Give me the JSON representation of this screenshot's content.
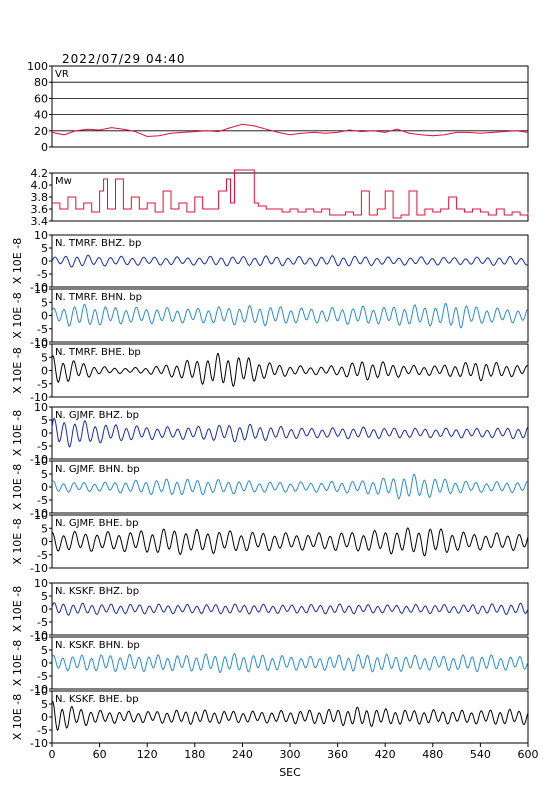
{
  "header": {
    "timestamp": "2022/07/29 04:40"
  },
  "colors": {
    "vr": "#e0103c",
    "mw": "#e0103c",
    "bhz": "#1a2aa8",
    "bhn": "#2a8ad8",
    "bhe": "#000000",
    "grid": "#000000"
  },
  "x_axis": {
    "label": "SEC",
    "ticks": [
      "0",
      "60",
      "120",
      "180",
      "240",
      "300",
      "360",
      "420",
      "480",
      "540",
      "600"
    ],
    "min": 0,
    "max": 600
  },
  "chart_data": [
    {
      "type": "line",
      "label": "VR",
      "ylim": [
        0,
        100
      ],
      "yticks": [
        "100",
        "80",
        "60",
        "40",
        "20",
        "0"
      ],
      "grid": true,
      "x": [
        0,
        15,
        30,
        45,
        60,
        75,
        90,
        105,
        120,
        135,
        150,
        165,
        180,
        195,
        210,
        225,
        240,
        255,
        270,
        285,
        300,
        315,
        330,
        345,
        360,
        375,
        390,
        405,
        420,
        435,
        450,
        465,
        480,
        495,
        510,
        525,
        540,
        555,
        570,
        585,
        600
      ],
      "values": [
        18,
        15,
        20,
        22,
        21,
        24,
        22,
        19,
        13,
        14,
        17,
        18,
        19,
        20,
        19,
        24,
        28,
        26,
        22,
        18,
        15,
        17,
        18,
        17,
        18,
        21,
        19,
        20,
        18,
        22,
        17,
        15,
        14,
        15,
        18,
        18,
        17,
        18,
        19,
        20,
        18
      ]
    },
    {
      "type": "line",
      "label": "Mw",
      "ylim": [
        3.4,
        4.2
      ],
      "yticks": [
        "4.2",
        "4.0",
        "3.8",
        "3.6",
        "3.4"
      ],
      "grid": false,
      "x": [
        0,
        10,
        20,
        30,
        40,
        50,
        60,
        65,
        70,
        80,
        90,
        100,
        110,
        120,
        130,
        140,
        150,
        160,
        170,
        180,
        190,
        200,
        210,
        220,
        225,
        230,
        240,
        250,
        255,
        260,
        270,
        280,
        290,
        300,
        310,
        320,
        330,
        340,
        350,
        360,
        370,
        380,
        390,
        400,
        410,
        420,
        430,
        440,
        450,
        460,
        470,
        480,
        490,
        500,
        510,
        520,
        530,
        540,
        550,
        560,
        570,
        580,
        590,
        600
      ],
      "values": [
        3.7,
        3.6,
        3.8,
        3.6,
        3.7,
        3.55,
        3.9,
        4.1,
        3.6,
        4.1,
        3.6,
        3.8,
        3.6,
        3.7,
        3.55,
        3.9,
        3.6,
        3.7,
        3.55,
        3.8,
        3.6,
        3.6,
        3.9,
        4.1,
        3.7,
        4.25,
        4.25,
        4.25,
        3.7,
        3.65,
        3.6,
        3.6,
        3.55,
        3.6,
        3.55,
        3.6,
        3.55,
        3.6,
        3.5,
        3.5,
        3.55,
        3.5,
        3.9,
        3.5,
        3.6,
        3.9,
        3.45,
        3.5,
        3.9,
        3.5,
        3.6,
        3.55,
        3.6,
        3.8,
        3.6,
        3.55,
        3.6,
        3.55,
        3.5,
        3.6,
        3.5,
        3.55,
        3.5,
        3.55
      ]
    },
    {
      "type": "line",
      "label": "N. TMRF. BHZ. bp",
      "ylim": [
        -10,
        10
      ],
      "yticks": [
        "10",
        "5",
        "0",
        "-5",
        "-10"
      ],
      "y_unit": "X 10E -8",
      "component": "bhz",
      "amp": [
        1.2,
        2.0,
        1.5,
        1.4,
        1.3,
        1.3,
        1.2,
        1.5,
        1.4,
        1.6,
        1.3,
        1.4,
        1.7,
        1.5,
        1.2,
        1.2,
        1.3,
        1.1,
        1.2,
        1.4,
        1.2
      ],
      "period": 14,
      "phase": 0.0
    },
    {
      "type": "line",
      "label": "N. TMRF. BHN. bp",
      "ylim": [
        -10,
        10
      ],
      "yticks": [
        "10",
        "5",
        "0",
        "-5",
        "-10"
      ],
      "y_unit": "X 10E -8",
      "component": "bhn",
      "amp": [
        2.0,
        3.5,
        3.0,
        2.5,
        2.4,
        2.3,
        2.2,
        2.6,
        2.8,
        3.0,
        2.5,
        2.2,
        2.4,
        2.8,
        2.6,
        3.2,
        3.0,
        4.0,
        2.5,
        2.2,
        2.0
      ],
      "period": 13,
      "phase": 0.5
    },
    {
      "type": "line",
      "label": "N. TMRF. BHE. bp",
      "ylim": [
        -10,
        10
      ],
      "yticks": [
        "10",
        "5",
        "0",
        "-5",
        "-10"
      ],
      "y_unit": "X 10E -8",
      "component": "bhe",
      "amp": [
        4.5,
        3.0,
        1.2,
        0.8,
        1.0,
        2.0,
        3.5,
        5.0,
        4.5,
        2.5,
        1.5,
        1.2,
        1.5,
        3.0,
        2.5,
        1.5,
        1.5,
        2.0,
        3.0,
        2.0,
        1.5
      ],
      "period": 13,
      "phase": 1.0
    },
    {
      "type": "line",
      "label": "N. GJMF. BHZ. bp",
      "ylim": [
        -10,
        10
      ],
      "yticks": [
        "10",
        "5",
        "0",
        "-5",
        "-10"
      ],
      "y_unit": "X 10E -8",
      "component": "bhz",
      "amp": [
        4.5,
        4.0,
        3.0,
        2.5,
        2.0,
        1.8,
        2.0,
        2.5,
        2.8,
        2.2,
        1.8,
        1.5,
        1.6,
        1.8,
        1.6,
        1.5,
        1.4,
        1.5,
        1.4,
        1.6,
        2.0
      ],
      "period": 13,
      "phase": 0.3
    },
    {
      "type": "line",
      "label": "N. GJMF. BHN. bp",
      "ylim": [
        -10,
        10
      ],
      "yticks": [
        "10",
        "5",
        "0",
        "-5",
        "-10"
      ],
      "y_unit": "X 10E -8",
      "component": "bhn",
      "amp": [
        1.8,
        1.5,
        1.4,
        1.8,
        2.2,
        2.6,
        2.4,
        2.2,
        2.0,
        1.6,
        1.6,
        1.5,
        1.8,
        2.0,
        2.8,
        4.0,
        3.0,
        2.0,
        1.6,
        1.6,
        1.8
      ],
      "period": 13,
      "phase": 0.8
    },
    {
      "type": "line",
      "label": "N. GJMF. BHE. bp",
      "ylim": [
        -10,
        10
      ],
      "yticks": [
        "10",
        "5",
        "0",
        "-5",
        "-10"
      ],
      "y_unit": "X 10E -8",
      "component": "bhe",
      "amp": [
        3.0,
        3.0,
        2.8,
        3.0,
        3.5,
        4.0,
        3.5,
        3.5,
        3.0,
        2.8,
        2.5,
        2.5,
        2.8,
        3.0,
        3.5,
        4.0,
        4.5,
        3.0,
        2.5,
        2.5,
        2.8
      ],
      "period": 14,
      "phase": 1.3
    },
    {
      "type": "line",
      "label": "N. KSKF. BHZ. bp",
      "ylim": [
        -10,
        10
      ],
      "yticks": [
        "10",
        "5",
        "0",
        "-5",
        "-10"
      ],
      "y_unit": "X 10E -8",
      "component": "bhz",
      "amp": [
        2.0,
        1.8,
        1.6,
        1.5,
        1.5,
        1.4,
        1.4,
        1.5,
        1.5,
        1.4,
        1.3,
        1.4,
        1.5,
        1.4,
        1.3,
        1.3,
        1.4,
        1.3,
        1.5,
        1.6,
        1.8
      ],
      "period": 12,
      "phase": 0.2
    },
    {
      "type": "line",
      "label": "N. KSKF. BHN. bp",
      "ylim": [
        -10,
        10
      ],
      "yticks": [
        "10",
        "5",
        "0",
        "-5",
        "-10"
      ],
      "y_unit": "X 10E -8",
      "component": "bhn",
      "amp": [
        2.2,
        2.4,
        2.6,
        2.6,
        2.5,
        2.4,
        2.6,
        2.8,
        2.8,
        2.5,
        2.2,
        2.0,
        2.4,
        2.8,
        2.6,
        2.4,
        2.2,
        2.4,
        2.6,
        2.2,
        2.0
      ],
      "period": 12,
      "phase": 0.6
    },
    {
      "type": "line",
      "label": "N. KSKF. BHE. bp",
      "ylim": [
        -10,
        10
      ],
      "yticks": [
        "10",
        "5",
        "0",
        "-5",
        "-10"
      ],
      "y_unit": "X 10E -8",
      "component": "bhe",
      "amp": [
        5.0,
        3.0,
        2.0,
        1.8,
        1.8,
        2.0,
        2.2,
        2.0,
        1.8,
        1.8,
        2.0,
        2.2,
        2.5,
        3.0,
        2.5,
        2.2,
        2.2,
        2.0,
        2.2,
        2.4,
        2.2
      ],
      "period": 12,
      "phase": 1.1
    }
  ]
}
